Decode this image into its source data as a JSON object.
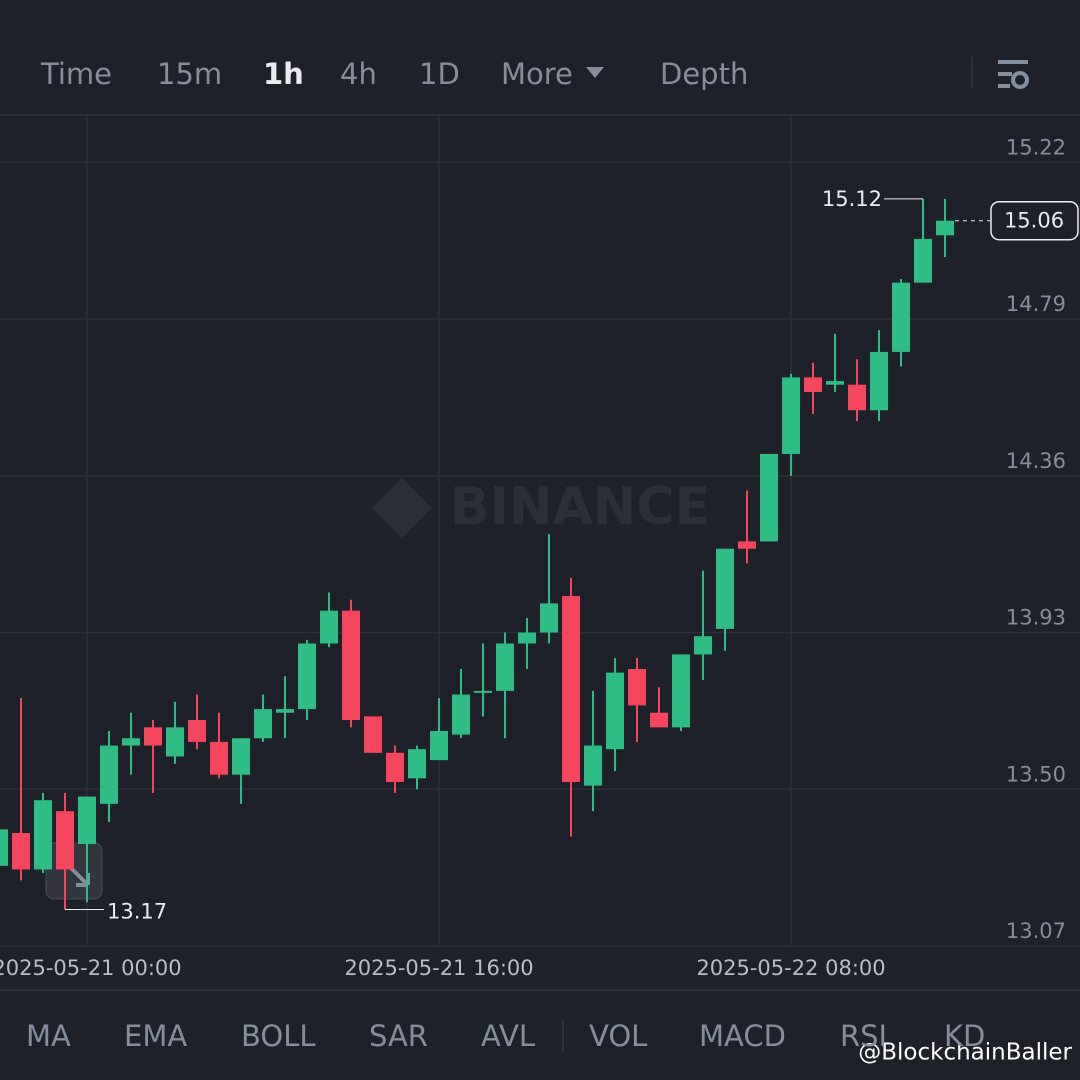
{
  "toolbar": {
    "items": [
      "Time",
      "15m",
      "1h",
      "4h",
      "1D",
      "More",
      "Depth"
    ],
    "active_index": 2
  },
  "indicators": [
    "MA",
    "EMA",
    "BOLL",
    "SAR",
    "AVL",
    "VOL",
    "MACD",
    "RSI",
    "KD"
  ],
  "watermark": "BINANCE",
  "credit": "@BlockchainBaller",
  "chart_data": {
    "type": "candlestick",
    "categories": [
      null,
      null,
      null,
      null,
      "2025-05-21 00:00",
      null,
      null,
      null,
      null,
      null,
      null,
      null,
      null,
      null,
      null,
      null,
      null,
      null,
      null,
      null,
      "2025-05-21 16:00",
      null,
      null,
      null,
      null,
      null,
      null,
      null,
      null,
      null,
      null,
      null,
      null,
      null,
      null,
      null,
      "2025-05-22 08:00",
      null,
      null,
      null,
      null,
      null,
      null,
      null
    ],
    "open": [
      13.29,
      13.38,
      13.28,
      13.44,
      13.35,
      13.46,
      13.62,
      13.67,
      13.59,
      13.69,
      13.63,
      13.54,
      13.64,
      13.71,
      13.72,
      13.9,
      13.99,
      13.7,
      13.6,
      13.53,
      13.58,
      13.65,
      13.77,
      13.77,
      13.9,
      13.93,
      14.03,
      13.51,
      13.61,
      13.83,
      13.71,
      13.67,
      13.87,
      13.94,
      14.18,
      14.18,
      14.42,
      14.63,
      14.61,
      14.61,
      14.54,
      14.7,
      14.89,
      15.02
    ],
    "high": [
      13.4,
      13.75,
      13.49,
      13.49,
      13.48,
      13.66,
      13.71,
      13.69,
      13.74,
      13.76,
      13.71,
      13.64,
      13.76,
      13.81,
      13.91,
      14.04,
      14.02,
      13.7,
      13.62,
      13.62,
      13.75,
      13.83,
      13.9,
      13.93,
      13.97,
      14.2,
      14.08,
      13.77,
      13.86,
      13.86,
      13.78,
      13.87,
      14.1,
      14.16,
      14.32,
      14.42,
      14.64,
      14.67,
      14.75,
      14.68,
      14.76,
      14.9,
      15.12,
      15.12
    ],
    "low": [
      13.26,
      13.25,
      13.27,
      13.17,
      13.19,
      13.41,
      13.54,
      13.49,
      13.57,
      13.61,
      13.53,
      13.46,
      13.63,
      13.64,
      13.69,
      13.89,
      13.67,
      13.6,
      13.49,
      13.5,
      13.58,
      13.64,
      13.7,
      13.64,
      13.83,
      13.9,
      13.37,
      13.44,
      13.55,
      13.63,
      13.67,
      13.66,
      13.8,
      13.88,
      14.12,
      14.18,
      14.36,
      14.53,
      14.59,
      14.51,
      14.51,
      14.66,
      14.89,
      14.96
    ],
    "close": [
      13.39,
      13.28,
      13.47,
      13.28,
      13.48,
      13.62,
      13.64,
      13.62,
      13.67,
      13.63,
      13.54,
      13.64,
      13.72,
      13.72,
      13.9,
      13.99,
      13.69,
      13.6,
      13.52,
      13.61,
      13.66,
      13.76,
      13.77,
      13.9,
      13.93,
      14.01,
      13.52,
      13.62,
      13.82,
      13.73,
      13.67,
      13.87,
      13.92,
      14.16,
      14.16,
      14.42,
      14.63,
      14.59,
      14.62,
      14.54,
      14.7,
      14.89,
      15.01,
      15.06
    ],
    "up_color": "#2ebd85",
    "down_color": "#f6465d",
    "ylim": [
      13.07,
      15.35
    ],
    "yticks": [
      13.07,
      {
        "value": 13.5,
        "label": "13.50"
      },
      13.93,
      14.36,
      14.79,
      15.22
    ],
    "grid": true,
    "max_annotation": 15.12,
    "min_annotation": 13.17,
    "last_price": 15.06
  }
}
